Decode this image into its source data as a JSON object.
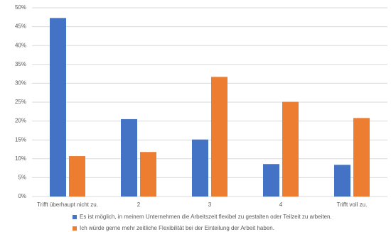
{
  "chart_data": {
    "type": "bar",
    "categories": [
      "Trifft überhaupt nicht zu.",
      "2",
      "3",
      "4",
      "Trifft voll zu."
    ],
    "series": [
      {
        "name": "Es ist möglich, in meinem Unternehmen die Arbeitszeit flexibel zu gestalten oder Teilzeit zu arbeiten.",
        "color": "#4472c4",
        "values": [
          47.3,
          20.5,
          15.1,
          8.6,
          8.4
        ]
      },
      {
        "name": "Ich würde gerne mehr zeitliche Flexibilität bei der Einteilung der Arbeit haben.",
        "color": "#ed7d31",
        "values": [
          10.7,
          11.8,
          31.7,
          25.1,
          20.8
        ]
      }
    ],
    "ylim": [
      0,
      50
    ],
    "yticks": [
      {
        "value": 0,
        "label": "0%"
      },
      {
        "value": 5,
        "label": "5%"
      },
      {
        "value": 10,
        "label": "10%"
      },
      {
        "value": 15,
        "label": "15%"
      },
      {
        "value": 20,
        "label": "20%"
      },
      {
        "value": 25,
        "label": "25%"
      },
      {
        "value": 30,
        "label": "30%"
      },
      {
        "value": 35,
        "label": "35%"
      },
      {
        "value": 40,
        "label": "40%"
      },
      {
        "value": 45,
        "label": "45%"
      },
      {
        "value": 50,
        "label": "50%"
      }
    ],
    "grid": true
  }
}
